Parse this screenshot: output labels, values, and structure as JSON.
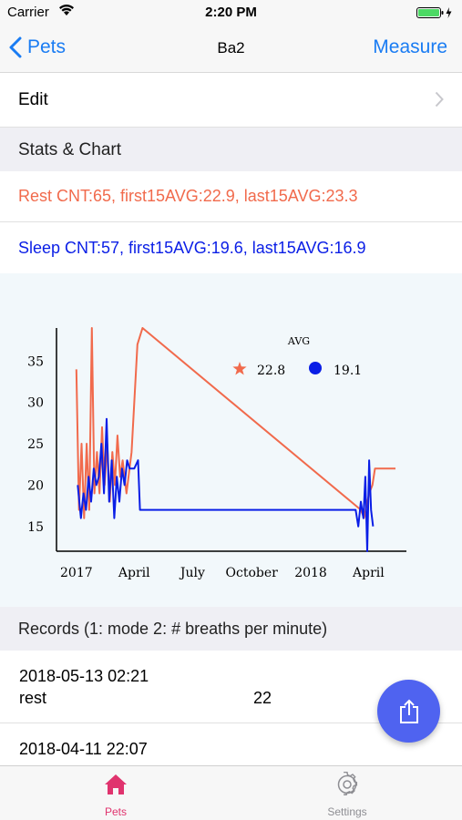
{
  "status_bar": {
    "carrier": "Carrier",
    "time": "2:20 PM"
  },
  "nav": {
    "back_label": "Pets",
    "title": "Ba2",
    "measure_label": "Measure"
  },
  "edit_row": {
    "label": "Edit"
  },
  "stats_section": {
    "header": "Stats & Chart"
  },
  "stats": {
    "rest": "Rest CNT:65, first15AVG:22.9, last15AVG:23.3",
    "sleep": "Sleep CNT:57, first15AVG:19.6, last15AVG:16.9"
  },
  "colors": {
    "rest": "#f16a4c",
    "sleep": "#0a1ee6",
    "accent": "#1a7cf3",
    "fab": "#4f63f0",
    "active_tab": "#e0336e"
  },
  "chart_data": {
    "type": "line",
    "legend_title": "AVG",
    "legend_placement": "top-right",
    "ylim": [
      12,
      39
    ],
    "yticks": [
      "15",
      "20",
      "25",
      "30",
      "35"
    ],
    "xticks": [
      "2017",
      "April",
      "July",
      "October",
      "2018",
      "April"
    ],
    "series": [
      {
        "name": "22.8",
        "marker": "star",
        "color": "#f16a4c",
        "x": [
          "2017-01-01",
          "2017-01-05",
          "2017-01-09",
          "2017-01-13",
          "2017-01-17",
          "2017-01-21",
          "2017-01-25",
          "2017-01-29",
          "2017-02-02",
          "2017-02-06",
          "2017-02-10",
          "2017-02-14",
          "2017-02-18",
          "2017-02-22",
          "2017-02-26",
          "2017-03-02",
          "2017-03-06",
          "2017-03-10",
          "2017-03-14",
          "2017-03-20",
          "2017-03-28",
          "2017-04-06",
          "2017-04-14",
          "2018-03-20",
          "2018-03-25",
          "2018-04-02",
          "2018-04-07",
          "2018-04-11",
          "2018-05-13"
        ],
        "values": [
          34,
          17,
          25,
          16,
          25,
          17,
          39,
          19,
          24,
          19,
          27,
          20,
          25,
          18,
          24,
          20,
          26,
          21,
          23,
          19,
          24,
          37,
          39,
          17,
          16,
          19,
          20,
          22,
          22
        ]
      },
      {
        "name": "19.1",
        "marker": "circle",
        "color": "#0a1ee6",
        "x": [
          "2017-01-03",
          "2017-01-08",
          "2017-01-12",
          "2017-01-16",
          "2017-01-20",
          "2017-01-24",
          "2017-01-28",
          "2017-02-01",
          "2017-02-05",
          "2017-02-09",
          "2017-02-13",
          "2017-02-17",
          "2017-02-21",
          "2017-02-25",
          "2017-03-01",
          "2017-03-05",
          "2017-03-09",
          "2017-03-13",
          "2017-03-17",
          "2017-03-21",
          "2017-03-25",
          "2017-04-01",
          "2017-04-07",
          "2017-04-10",
          "2018-03-08",
          "2018-03-12",
          "2018-03-16",
          "2018-03-20",
          "2018-03-24",
          "2018-03-27",
          "2018-03-30",
          "2018-04-02",
          "2018-04-05",
          "2018-04-08"
        ],
        "values": [
          20,
          16,
          19,
          17,
          21,
          18,
          22,
          20,
          21,
          25,
          19,
          28,
          18,
          23,
          16,
          21,
          18,
          22,
          20,
          23,
          22,
          22,
          23,
          17,
          17,
          17,
          15,
          18,
          16,
          21,
          12,
          23,
          17,
          15
        ]
      }
    ]
  },
  "records_section": {
    "header": "Records (1: mode 2: # breaths per minute)"
  },
  "records": [
    {
      "date": "2018-05-13 02:21",
      "mode": "rest",
      "value": "22"
    },
    {
      "date": "2018-04-11 22:07",
      "mode": "",
      "value": ""
    }
  ],
  "tabs": [
    {
      "label": "Pets",
      "icon": "home-icon"
    },
    {
      "label": "Settings",
      "icon": "gear-icon"
    }
  ]
}
